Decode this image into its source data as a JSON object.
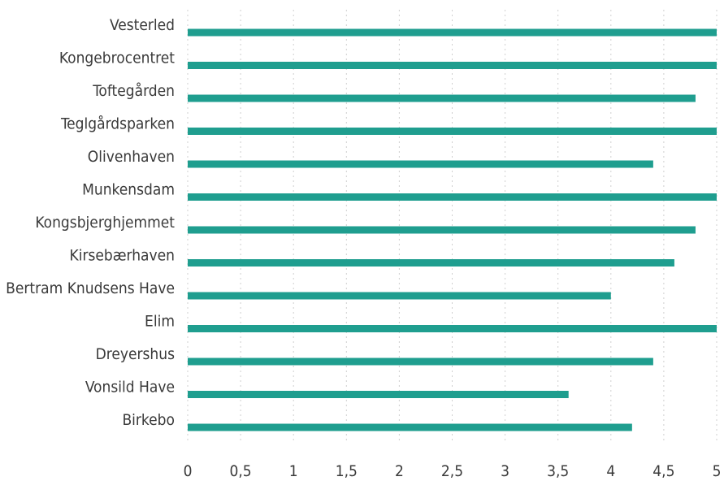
{
  "colors": {
    "bar": "#1f9e8f",
    "grid": "#cfcfcf",
    "text": "#3a3a3a"
  },
  "chart_data": {
    "type": "bar",
    "orientation": "horizontal",
    "categories": [
      "Vesterled",
      "Kongebrocentret",
      "Toftegården",
      "Teglgårdsparken",
      "Olivenhaven",
      "Munkensdam",
      "Kongsbjerghjemmet",
      "Kirsebærhaven",
      "Bertram Knudsens Have",
      "Elim",
      "Dreyershus",
      "Vonsild Have",
      "Birkebo"
    ],
    "values": [
      5,
      5,
      4.8,
      5,
      4.4,
      5,
      4.8,
      4.6,
      4,
      5,
      4.4,
      3.6,
      4.2
    ],
    "xlim": [
      0,
      5
    ],
    "xticks": [
      "0",
      "0,5",
      "1",
      "1,5",
      "2",
      "2,5",
      "3",
      "3,5",
      "4",
      "4,5",
      "5"
    ],
    "grid": true,
    "title": "",
    "xlabel": "",
    "ylabel": ""
  }
}
